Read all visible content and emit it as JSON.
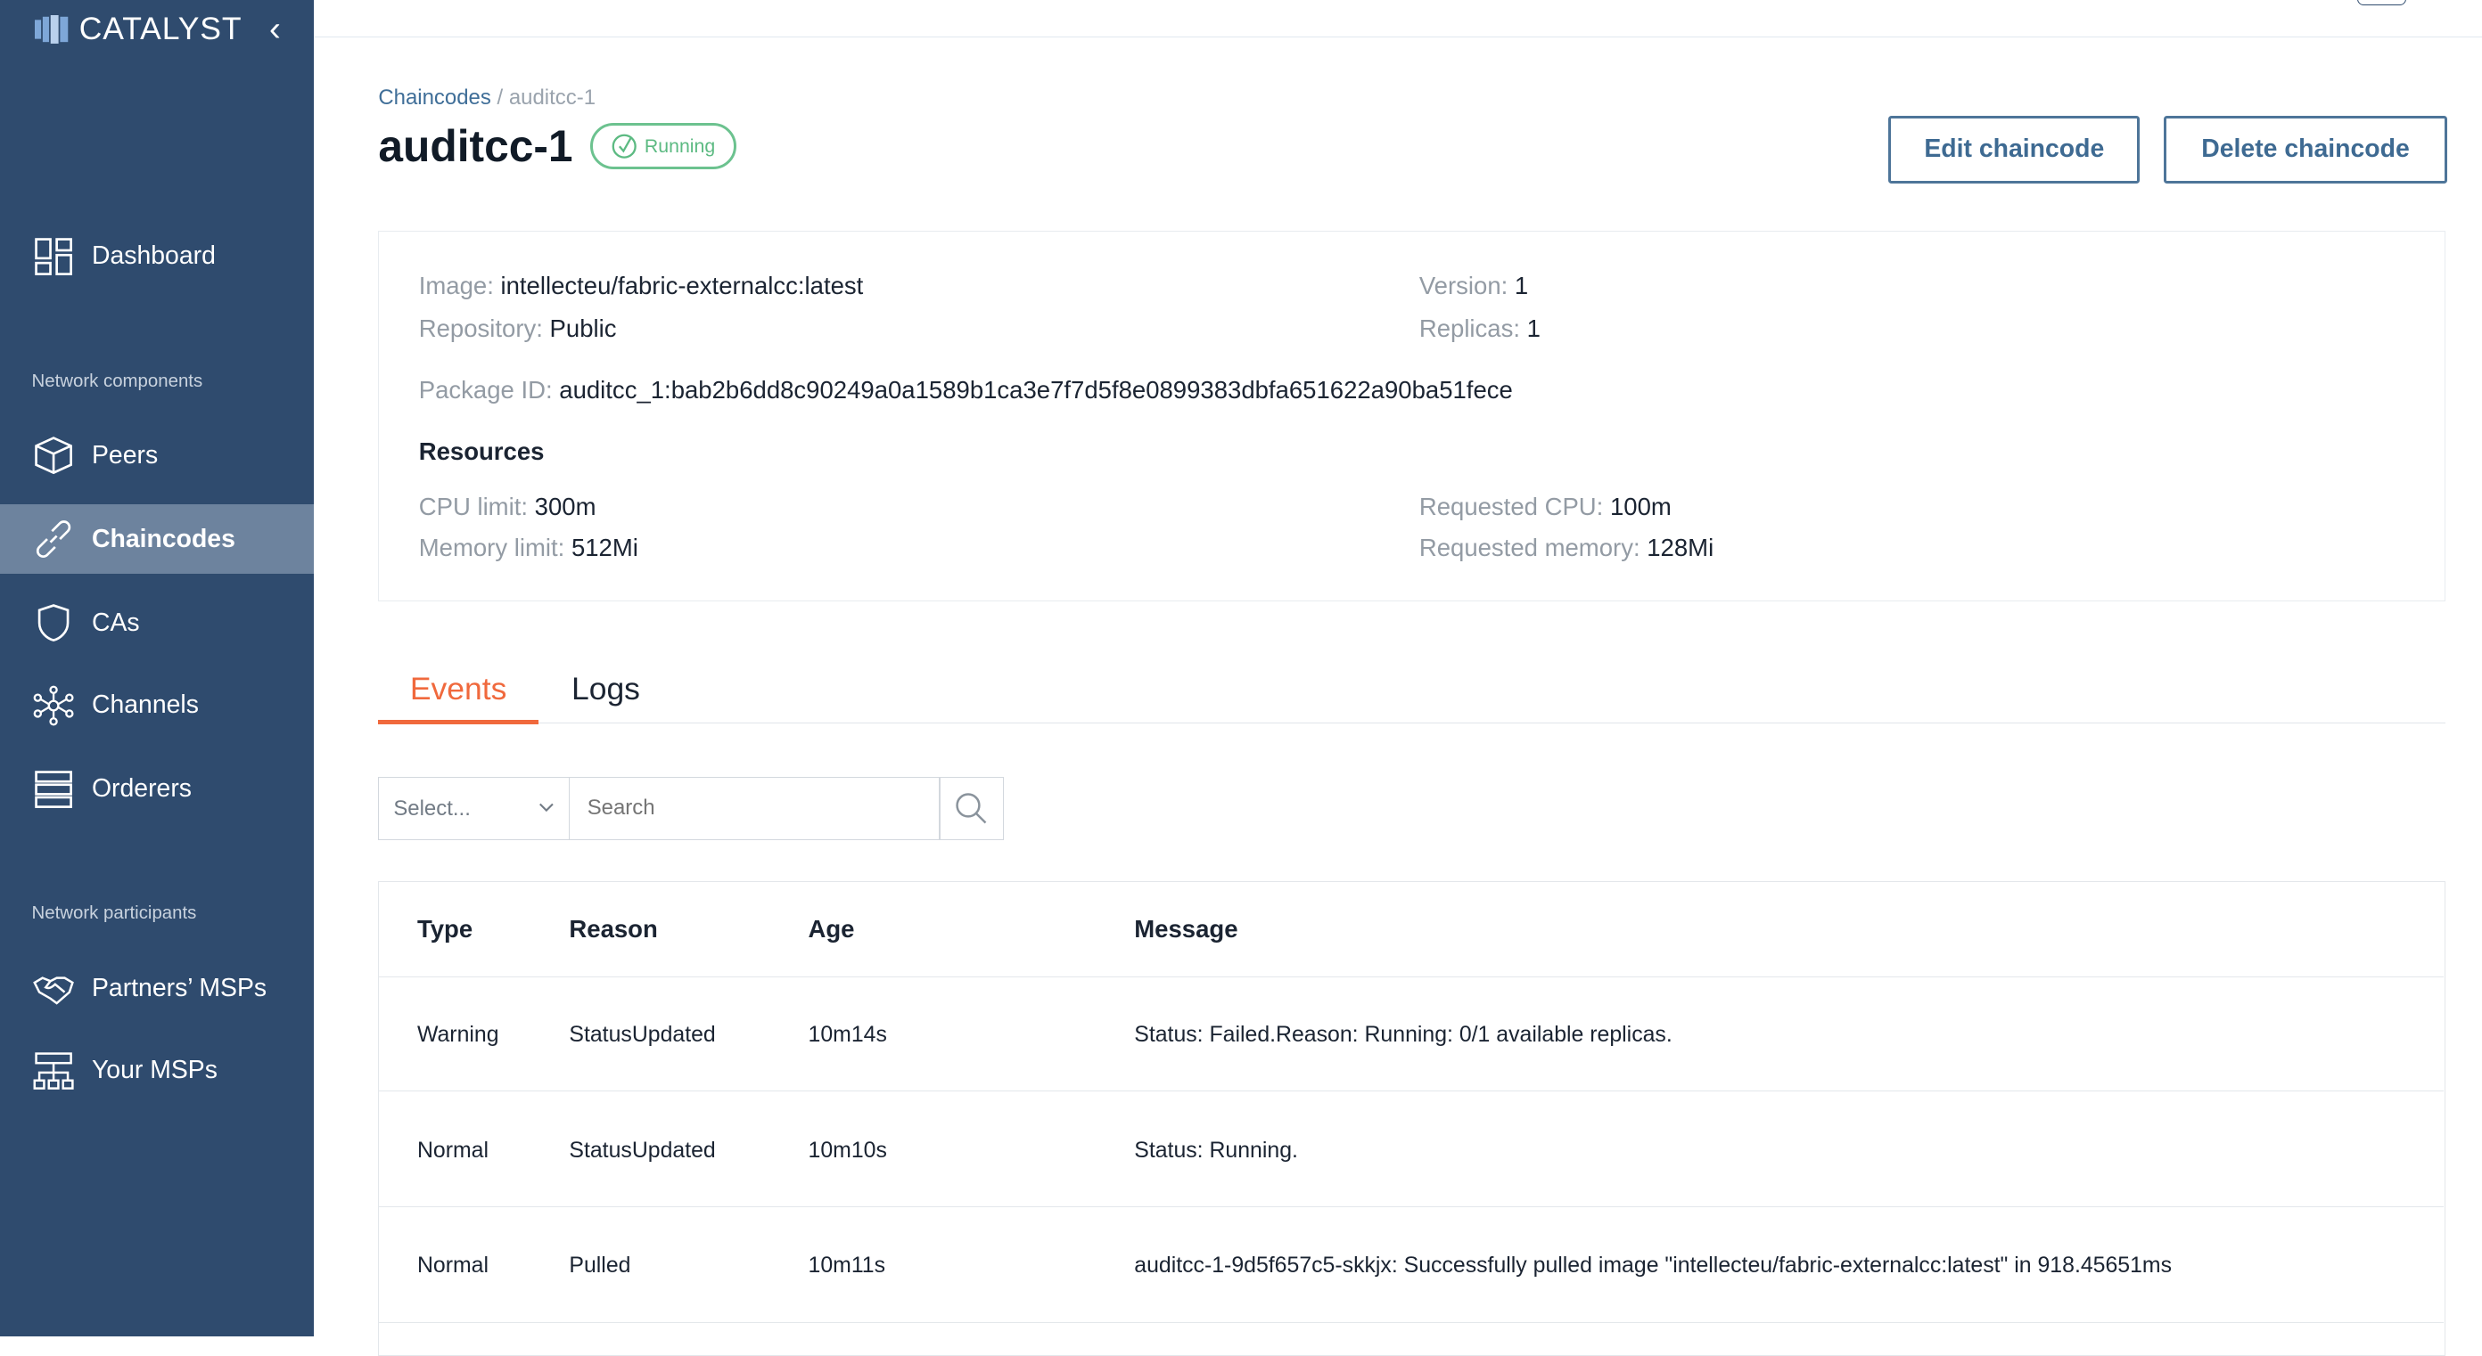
{
  "sidebar": {
    "logo_text": "CATALYST",
    "sections": [
      "Network components",
      "Network participants"
    ],
    "items": [
      {
        "label": "Dashboard",
        "icon": "dashboard-icon"
      },
      {
        "label": "Peers",
        "icon": "cube-icon"
      },
      {
        "label": "Chaincodes",
        "icon": "link-icon",
        "active": true
      },
      {
        "label": "CAs",
        "icon": "shield-icon"
      },
      {
        "label": "Channels",
        "icon": "network-icon"
      },
      {
        "label": "Orderers",
        "icon": "server-icon"
      },
      {
        "label": "Partners’ MSPs",
        "icon": "handshake-icon"
      },
      {
        "label": "Your MSPs",
        "icon": "hierarchy-icon"
      }
    ]
  },
  "breadcrumb": {
    "parent": "Chaincodes",
    "separator": "/",
    "current": "auditcc-1"
  },
  "header": {
    "title": "auditcc-1",
    "status": "Running",
    "status_color": "#5cba82",
    "edit_label": "Edit chaincode",
    "delete_label": "Delete chaincode"
  },
  "details": {
    "image_label": "Image:",
    "image": "intellecteu/fabric-externalcc:latest",
    "repository_label": "Repository:",
    "repository": "Public",
    "version_label": "Version:",
    "version": "1",
    "replicas_label": "Replicas:",
    "replicas": "1",
    "package_label": "Package ID:",
    "package_id": "auditcc_1:bab2b6dd8c90249a0a1589b1ca3e7f7d5f8e0899383dbfa651622a90ba51fece",
    "resources_title": "Resources",
    "cpu_limit_label": "CPU limit:",
    "cpu_limit": "300m",
    "memory_limit_label": "Memory limit:",
    "memory_limit": "512Mi",
    "req_cpu_label": "Requested CPU:",
    "req_cpu": "100m",
    "req_memory_label": "Requested memory:",
    "req_memory": "128Mi"
  },
  "tabs": [
    {
      "label": "Events",
      "active": true
    },
    {
      "label": "Logs"
    }
  ],
  "filters": {
    "select_placeholder": "Select...",
    "search_placeholder": "Search"
  },
  "table": {
    "headers": [
      "Type",
      "Reason",
      "Age",
      "Message"
    ],
    "rows": [
      [
        "Warning",
        "StatusUpdated",
        "10m14s",
        "Status: Failed.Reason: Running: 0/1 available replicas."
      ],
      [
        "Normal",
        "StatusUpdated",
        "10m10s",
        "Status: Running."
      ],
      [
        "Normal",
        "Pulled",
        "10m11s",
        "auditcc-1-9d5f657c5-skkjx: Successfully pulled image \"intellecteu/fabric-externalcc:latest\" in 918.45651ms"
      ]
    ]
  },
  "colors": {
    "sidebar": "#2f4b6e",
    "accent": "#f0693d",
    "primary": "#3e6a92"
  }
}
